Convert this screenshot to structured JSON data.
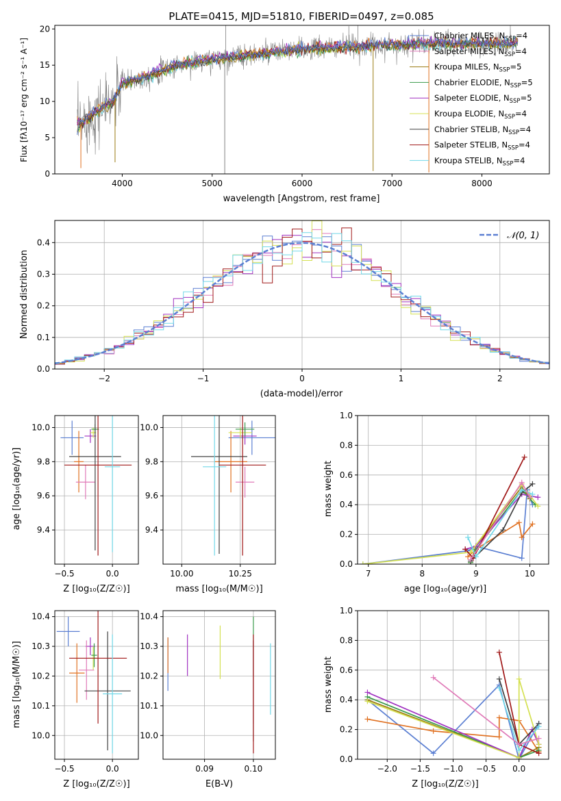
{
  "colors": [
    "#5b7fd2",
    "#e07020",
    "#9a7a10",
    "#3a9a4a",
    "#a030c0",
    "#d4e050",
    "#404040",
    "#a01818",
    "#70d8e8",
    "#e07ab8"
  ],
  "chart_data": [
    {
      "id": "spectrum",
      "type": "line",
      "title": "PLATE=0415, MJD=51810, FIBERID=0497, z=0.085",
      "xlabel": "wavelength [Angstrom, rest frame]",
      "ylabel": "Flux [fλ10⁻¹⁷ erg cm⁻² s⁻¹ A⁻¹]",
      "xlim": [
        3250,
        8750
      ],
      "ylim": [
        0,
        20.5
      ],
      "xticks": [
        4000,
        5000,
        6000,
        7000,
        8000
      ],
      "yticks": [
        0,
        5,
        10,
        15,
        20
      ],
      "grid": false,
      "legend_position": "top-right",
      "legend": [
        {
          "label": "Chabrier MILES, N",
          "sub": "SSP",
          "tail": "=4"
        },
        {
          "label": "Salpeter MILES, N",
          "sub": "SSP",
          "tail": "=4"
        },
        {
          "label": "Kroupa MILES, N",
          "sub": "SSP",
          "tail": "=5"
        },
        {
          "label": "Chabrier ELODIE, N",
          "sub": "SSP",
          "tail": "=5"
        },
        {
          "label": "Salpeter ELODIE, N",
          "sub": "SSP",
          "tail": "=5"
        },
        {
          "label": "Kroupa ELODIE, N",
          "sub": "SSP",
          "tail": "=4"
        },
        {
          "label": "Chabrier STELIB, N",
          "sub": "SSP",
          "tail": "=4"
        },
        {
          "label": "Salpeter STELIB, N",
          "sub": "SSP",
          "tail": "=4"
        },
        {
          "label": "Kroupa STELIB, N",
          "sub": "SSP",
          "tail": "=4"
        }
      ],
      "observed_continuum": {
        "x": [
          3500,
          3700,
          3900,
          4000,
          4300,
          4600,
          5000,
          5500,
          6000,
          6500,
          7000,
          7500,
          8000,
          8400
        ],
        "y": [
          6.5,
          8.5,
          10,
          12.5,
          13.5,
          15,
          15.8,
          16.5,
          17.2,
          17.5,
          17.8,
          18,
          17.9,
          18
        ]
      }
    },
    {
      "id": "residuals",
      "type": "step",
      "xlabel": "(data-model)/error",
      "ylabel": "Normed distribution",
      "xlim": [
        -2.5,
        2.5
      ],
      "ylim": [
        0,
        0.47
      ],
      "xticks": [
        -2,
        -1,
        0,
        1,
        2
      ],
      "yticks": [
        0.0,
        0.1,
        0.2,
        0.3,
        0.4
      ],
      "grid": true,
      "legend_position": "top-right",
      "reference_curve": {
        "label": "𝒩(0, 1)",
        "mean": 0,
        "sigma": 1
      }
    },
    {
      "id": "age_vs_Z",
      "type": "errorbar",
      "xlabel": "Z [log₁₀(Z/Z☉)]",
      "ylabel": "age  [log₁₀(age/yr)]",
      "xlim": [
        -0.6,
        0.27
      ],
      "ylim": [
        9.2,
        10.07
      ],
      "xticks": [
        -0.5,
        0.0
      ],
      "yticks": [
        9.4,
        9.6,
        9.8,
        10.0
      ],
      "grid": true,
      "points": [
        {
          "x": -0.42,
          "y": 9.94,
          "xerr": 0.12,
          "yerr": 0.1
        },
        {
          "x": -0.35,
          "y": 9.8,
          "xerr": 0.05,
          "yerr": 0.18
        },
        {
          "x": -0.23,
          "y": 9.95,
          "xerr": 0.06,
          "yerr": 0.04
        },
        {
          "x": -0.2,
          "y": 9.97,
          "xerr": 0.03,
          "yerr": 0.03
        },
        {
          "x": -0.18,
          "y": 9.99,
          "xerr": 0.04,
          "yerr": 0.03
        },
        {
          "x": -0.28,
          "y": 9.68,
          "xerr": 0.1,
          "yerr": 0.1
        },
        {
          "x": -0.18,
          "y": 9.83,
          "xerr": 0.27,
          "yerr": 0.55
        },
        {
          "x": -0.15,
          "y": 9.78,
          "xerr": 0.35,
          "yerr": 0.53
        },
        {
          "x": 0.0,
          "y": 9.77,
          "xerr": 0.08,
          "yerr": 0.5
        }
      ]
    },
    {
      "id": "age_vs_mass",
      "type": "errorbar",
      "xlabel": "mass [log₁₀(M/M☉)]",
      "ylabel": "",
      "xlim": [
        9.92,
        10.4
      ],
      "ylim": [
        9.2,
        10.07
      ],
      "xticks": [
        10.0,
        10.25
      ],
      "yticks": [
        9.4,
        9.6,
        9.8,
        10.0
      ],
      "grid": true,
      "points": [
        {
          "x": 10.3,
          "y": 9.94,
          "xerr": 0.1,
          "yerr": 0.1
        },
        {
          "x": 10.21,
          "y": 9.8,
          "xerr": 0.07,
          "yerr": 0.18
        },
        {
          "x": 10.27,
          "y": 9.95,
          "xerr": 0.05,
          "yerr": 0.05
        },
        {
          "x": 10.25,
          "y": 9.97,
          "xerr": 0.05,
          "yerr": 0.03
        },
        {
          "x": 10.27,
          "y": 9.99,
          "xerr": 0.04,
          "yerr": 0.04
        },
        {
          "x": 10.27,
          "y": 9.68,
          "xerr": 0.04,
          "yerr": 0.09
        },
        {
          "x": 10.16,
          "y": 9.83,
          "xerr": 0.12,
          "yerr": 0.57
        },
        {
          "x": 10.26,
          "y": 9.78,
          "xerr": 0.1,
          "yerr": 0.53
        },
        {
          "x": 10.14,
          "y": 9.77,
          "xerr": 0.05,
          "yerr": 0.52
        }
      ]
    },
    {
      "id": "weight_vs_age",
      "type": "line",
      "xlabel": "age  [log₁₀(age/yr)]",
      "ylabel": "mass weight",
      "xlim": [
        6.8,
        10.35
      ],
      "ylim": [
        0,
        1
      ],
      "xticks": [
        7,
        8,
        9,
        10
      ],
      "yticks": [
        0.0,
        0.2,
        0.4,
        0.6,
        0.8,
        1.0
      ],
      "grid": true,
      "series": [
        {
          "x": [
            6.9,
            8.85,
            9.0,
            9.85,
            9.95,
            10.05
          ],
          "y": [
            0.0,
            0.09,
            0.12,
            0.04,
            0.5,
            0.4
          ]
        },
        {
          "x": [
            8.85,
            9.0,
            9.8,
            9.85,
            10.05
          ],
          "y": [
            0.05,
            0.1,
            0.28,
            0.18,
            0.27
          ]
        },
        {
          "x": [
            8.9,
            9.0,
            9.85,
            10.0
          ],
          "y": [
            0.01,
            0.12,
            0.52,
            0.44
          ]
        },
        {
          "x": [
            8.9,
            9.0,
            9.85,
            10.1
          ],
          "y": [
            0.01,
            0.1,
            0.5,
            0.4
          ]
        },
        {
          "x": [
            8.8,
            9.0,
            9.85,
            10.15
          ],
          "y": [
            0.1,
            0.12,
            0.47,
            0.45
          ]
        },
        {
          "x": [
            6.9,
            8.9,
            9.85,
            10.15
          ],
          "y": [
            0.0,
            0.08,
            0.54,
            0.39
          ]
        },
        {
          "x": [
            8.9,
            9.5,
            9.85,
            10.05
          ],
          "y": [
            0.02,
            0.23,
            0.48,
            0.54
          ]
        },
        {
          "x": [
            8.8,
            8.95,
            9.9
          ],
          "y": [
            0.1,
            0.04,
            0.72
          ]
        },
        {
          "x": [
            8.85,
            9.0,
            9.85,
            10.05
          ],
          "y": [
            0.18,
            0.05,
            0.5,
            0.47
          ]
        },
        {
          "x": [
            8.9,
            9.85,
            10.0
          ],
          "y": [
            0.03,
            0.55,
            0.45
          ]
        }
      ]
    },
    {
      "id": "mass_vs_Z",
      "type": "errorbar",
      "xlabel": "Z [log₁₀(Z/Z☉)]",
      "ylabel": "mass [log₁₀(M/M☉)]",
      "xlim": [
        -0.6,
        0.27
      ],
      "ylim": [
        9.92,
        10.42
      ],
      "xticks": [
        -0.5,
        0.0
      ],
      "yticks": [
        10.0,
        10.1,
        10.2,
        10.3,
        10.4
      ],
      "grid": true,
      "points": [
        {
          "x": -0.46,
          "y": 10.35,
          "xerr": 0.12,
          "yerr": 0.05
        },
        {
          "x": -0.37,
          "y": 10.21,
          "xerr": 0.08,
          "yerr": 0.1
        },
        {
          "x": -0.23,
          "y": 10.3,
          "xerr": 0.05,
          "yerr": 0.03
        },
        {
          "x": -0.2,
          "y": 10.26,
          "xerr": 0.05,
          "yerr": 0.04
        },
        {
          "x": -0.19,
          "y": 10.27,
          "xerr": 0.03,
          "yerr": 0.04
        },
        {
          "x": -0.27,
          "y": 10.22,
          "xerr": 0.08,
          "yerr": 0.1
        },
        {
          "x": -0.05,
          "y": 10.15,
          "xerr": 0.24,
          "yerr": 0.2
        },
        {
          "x": -0.15,
          "y": 10.26,
          "xerr": 0.3,
          "yerr": 0.22
        },
        {
          "x": 0.0,
          "y": 10.14,
          "xerr": 0.1,
          "yerr": 0.2
        }
      ]
    },
    {
      "id": "mass_vs_ebv",
      "type": "errorbar",
      "xlabel": "E(B-V)",
      "ylabel": "",
      "xlim": [
        0.0815,
        0.1045
      ],
      "ylim": [
        9.92,
        10.42
      ],
      "xticks": [
        0.09,
        0.1
      ],
      "yticks": [
        10.0,
        10.1,
        10.2,
        10.3,
        10.4
      ],
      "grid": true,
      "points": [
        {
          "x": 0.0825,
          "y": 10.24,
          "xerr": 0,
          "yerr": 0.09
        },
        {
          "x": 0.0825,
          "y": 10.27,
          "xerr": 0,
          "yerr": 0.06
        },
        {
          "x": 0.0865,
          "y": 10.27,
          "xerr": 0,
          "yerr": 0.07
        },
        {
          "x": 0.0932,
          "y": 10.28,
          "xerr": 0,
          "yerr": 0.09
        },
        {
          "x": 0.1,
          "y": 10.3,
          "xerr": 0,
          "yerr": 0.1
        },
        {
          "x": 0.1,
          "y": 10.18,
          "xerr": 0,
          "yerr": 0.14
        },
        {
          "x": 0.1,
          "y": 10.15,
          "xerr": 0,
          "yerr": 0.17
        },
        {
          "x": 0.1,
          "y": 10.14,
          "xerr": 0,
          "yerr": 0.2
        },
        {
          "x": 0.1035,
          "y": 10.19,
          "xerr": 0,
          "yerr": 0.12
        }
      ]
    },
    {
      "id": "weight_vs_Z",
      "type": "line",
      "xlabel": "Z [log₁₀(Z/Z☉)]",
      "ylabel": "mass weight",
      "xlim": [
        -2.45,
        0.45
      ],
      "ylim": [
        0,
        1
      ],
      "xticks": [
        -2.0,
        -1.5,
        -1.0,
        -0.5,
        0.0
      ],
      "yticks": [
        0.0,
        0.2,
        0.4,
        0.6,
        0.8,
        1.0
      ],
      "grid": true,
      "series": [
        {
          "x": [
            -2.3,
            -1.3,
            -0.3,
            0.0,
            0.3
          ],
          "y": [
            0.4,
            0.04,
            0.5,
            0.0,
            0.24
          ]
        },
        {
          "x": [
            -2.3,
            -1.3,
            -0.3,
            -0.3,
            0.0,
            0.3
          ],
          "y": [
            0.27,
            0.19,
            0.15,
            0.28,
            0.26,
            0.05
          ]
        },
        {
          "x": [
            -2.3,
            0.0,
            0.3
          ],
          "y": [
            0.4,
            0.01,
            0.08
          ]
        },
        {
          "x": [
            -2.3,
            0.0,
            0.3
          ],
          "y": [
            0.42,
            0.01,
            0.06
          ]
        },
        {
          "x": [
            -2.3,
            0.0,
            0.2,
            0.3
          ],
          "y": [
            0.45,
            0.01,
            0.2,
            0.1
          ]
        },
        {
          "x": [
            -2.3,
            0.0,
            0.0,
            0.3
          ],
          "y": [
            0.39,
            0.01,
            0.54,
            0.1
          ]
        },
        {
          "x": [
            -0.3,
            0.0,
            0.3
          ],
          "y": [
            0.54,
            0.1,
            0.24
          ]
        },
        {
          "x": [
            -0.3,
            0.0,
            0.3
          ],
          "y": [
            0.72,
            0.1,
            0.04
          ]
        },
        {
          "x": [
            -0.3,
            0.0,
            0.3
          ],
          "y": [
            0.48,
            0.06,
            0.22
          ]
        },
        {
          "x": [
            -1.3,
            0.0,
            0.3
          ],
          "y": [
            0.55,
            0.1,
            0.14
          ]
        }
      ]
    }
  ]
}
